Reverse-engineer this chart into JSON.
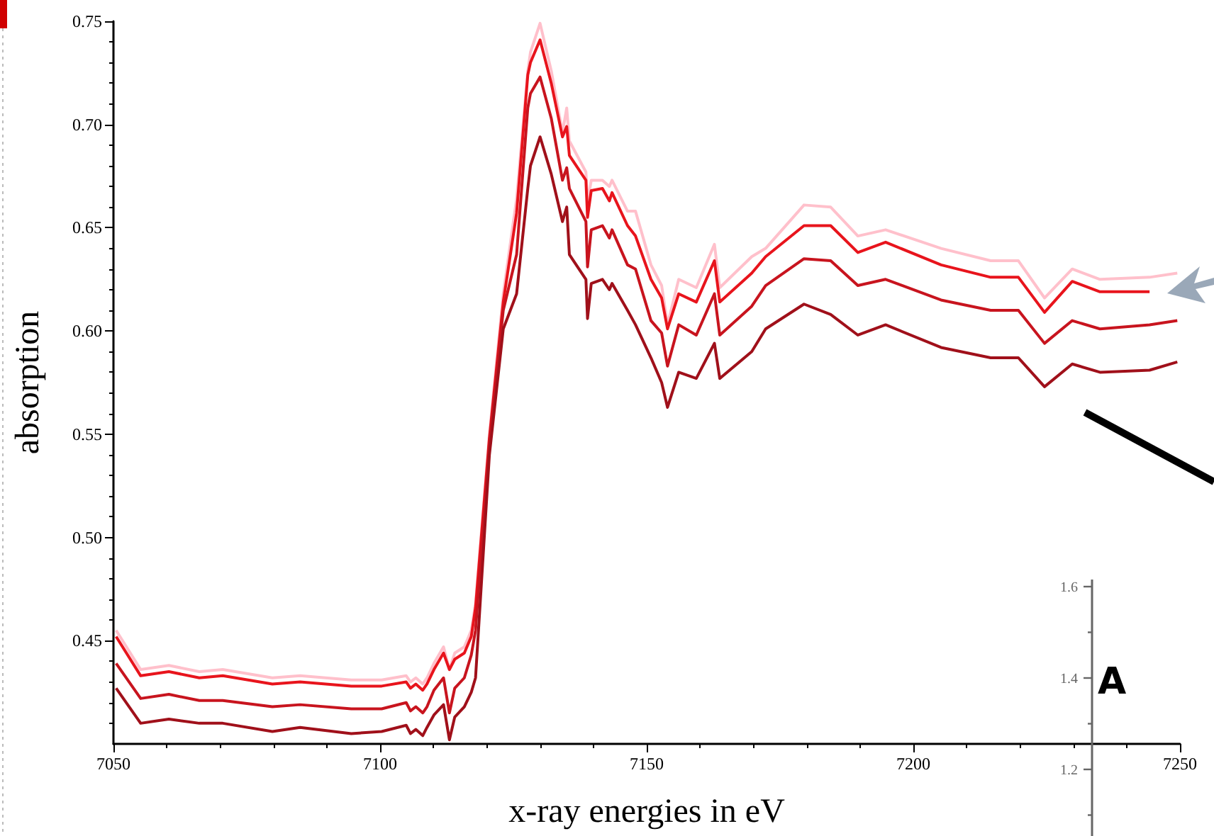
{
  "chart_data": [
    {
      "type": "line",
      "xlabel": "x-ray energies in eV",
      "ylabel": "absorption",
      "marker": "none",
      "xlim": [
        7050,
        7250
      ],
      "xticks": [
        7050,
        7100,
        7150,
        7200,
        7250
      ],
      "ylim": [
        0.4,
        0.75
      ],
      "yticks": [
        0.45,
        {
          "value": 0.5,
          "label": "0.50"
        },
        0.55,
        {
          "value": 0.6,
          "label": "0.60"
        },
        0.65,
        {
          "value": 0.7,
          "label": "0.70"
        },
        0.75
      ],
      "x": [
        7050.5,
        7055.1,
        7060.4,
        7066.1,
        7070.5,
        7079.8,
        7085,
        7094.6,
        7100.3,
        7104.9,
        7105.7,
        7106.7,
        7108,
        7108.8,
        7110.1,
        7111.9,
        7113,
        7114,
        7115.8,
        7117.1,
        7117.9,
        7120.5,
        7123.1,
        7125.6,
        7127.7,
        7128.2,
        7130,
        7132.1,
        7134.2,
        7135,
        7135.5,
        7138.6,
        7138.9,
        7139.6,
        7141.7,
        7143,
        7143.5,
        7146.4,
        7147.9,
        7150.8,
        7152.8,
        7153.9,
        7156,
        7159.3,
        7162.7,
        7163.7,
        7169.7,
        7172.3,
        7179.5,
        7184.5,
        7189.6,
        7194.8,
        7205.2,
        7214.5,
        7219.7,
        7224.6,
        7229.8,
        7235,
        7244.3,
        7249.5
      ],
      "series": [
        {
          "color": "#ffc0cb",
          "values": [
            0.455,
            0.436,
            0.438,
            0.435,
            0.436,
            0.432,
            0.433,
            0.431,
            0.431,
            0.433,
            0.43,
            0.432,
            0.429,
            0.432,
            0.439,
            0.447,
            0.436,
            0.444,
            0.447,
            0.455,
            0.468,
            0.55,
            0.618,
            0.664,
            0.726,
            0.735,
            0.749,
            0.726,
            0.696,
            0.708,
            0.692,
            0.677,
            0.662,
            0.673,
            0.673,
            0.67,
            0.673,
            0.658,
            0.658,
            0.632,
            0.622,
            0.603,
            0.625,
            0.621,
            0.642,
            0.621,
            0.636,
            0.64,
            0.661,
            0.66,
            0.646,
            0.649,
            0.64,
            0.634,
            0.634,
            0.616,
            0.63,
            0.625,
            0.626,
            0.628
          ]
        },
        {
          "color": "#e8141c",
          "values": [
            0.452,
            0.433,
            0.435,
            0.432,
            0.433,
            0.429,
            0.43,
            0.428,
            0.428,
            0.43,
            0.427,
            0.429,
            0.426,
            0.429,
            0.436,
            0.444,
            0.436,
            0.441,
            0.444,
            0.452,
            0.466,
            0.548,
            0.614,
            0.657,
            0.724,
            0.73,
            0.741,
            0.72,
            0.694,
            0.699,
            0.685,
            0.673,
            0.655,
            0.668,
            0.669,
            0.663,
            0.667,
            0.651,
            0.646,
            0.625,
            0.616,
            0.601,
            0.618,
            0.614,
            0.634,
            0.614,
            0.628,
            0.636,
            0.651,
            0.651,
            0.638,
            0.643,
            0.632,
            0.626,
            0.626,
            0.609,
            0.624,
            0.619,
            0.619,
            null
          ]
        },
        {
          "color": "#c8141e",
          "values": [
            0.439,
            0.422,
            0.424,
            0.421,
            0.421,
            0.418,
            0.419,
            0.417,
            0.417,
            0.42,
            0.416,
            0.418,
            0.415,
            0.418,
            0.426,
            0.432,
            0.415,
            0.427,
            0.432,
            0.443,
            0.455,
            0.546,
            0.61,
            0.637,
            0.708,
            0.715,
            0.723,
            0.703,
            0.673,
            0.679,
            0.669,
            0.653,
            0.631,
            0.649,
            0.651,
            0.645,
            0.649,
            0.632,
            0.63,
            0.605,
            0.599,
            0.583,
            0.603,
            0.598,
            0.618,
            0.598,
            0.612,
            0.622,
            0.635,
            0.634,
            0.622,
            0.625,
            0.615,
            0.61,
            0.61,
            0.594,
            0.605,
            0.601,
            0.603,
            0.605
          ]
        },
        {
          "color": "#a0101a",
          "values": [
            0.427,
            0.41,
            0.412,
            0.41,
            0.41,
            0.406,
            0.408,
            0.405,
            0.406,
            0.409,
            0.405,
            0.407,
            0.404,
            0.408,
            0.414,
            0.419,
            0.402,
            0.413,
            0.418,
            0.425,
            0.432,
            0.54,
            0.601,
            0.618,
            0.669,
            0.68,
            0.694,
            0.676,
            0.653,
            0.66,
            0.637,
            0.625,
            0.606,
            0.623,
            0.625,
            0.62,
            0.623,
            0.61,
            0.603,
            0.587,
            0.575,
            0.563,
            0.58,
            0.577,
            0.594,
            0.577,
            0.59,
            0.601,
            0.613,
            0.608,
            0.598,
            0.603,
            0.592,
            0.587,
            0.587,
            0.573,
            0.584,
            0.58,
            0.581,
            0.585
          ]
        }
      ]
    },
    {
      "type": "other",
      "title": "A",
      "annotations": [
        "1.6",
        "1.4",
        "1.2"
      ]
    }
  ]
}
